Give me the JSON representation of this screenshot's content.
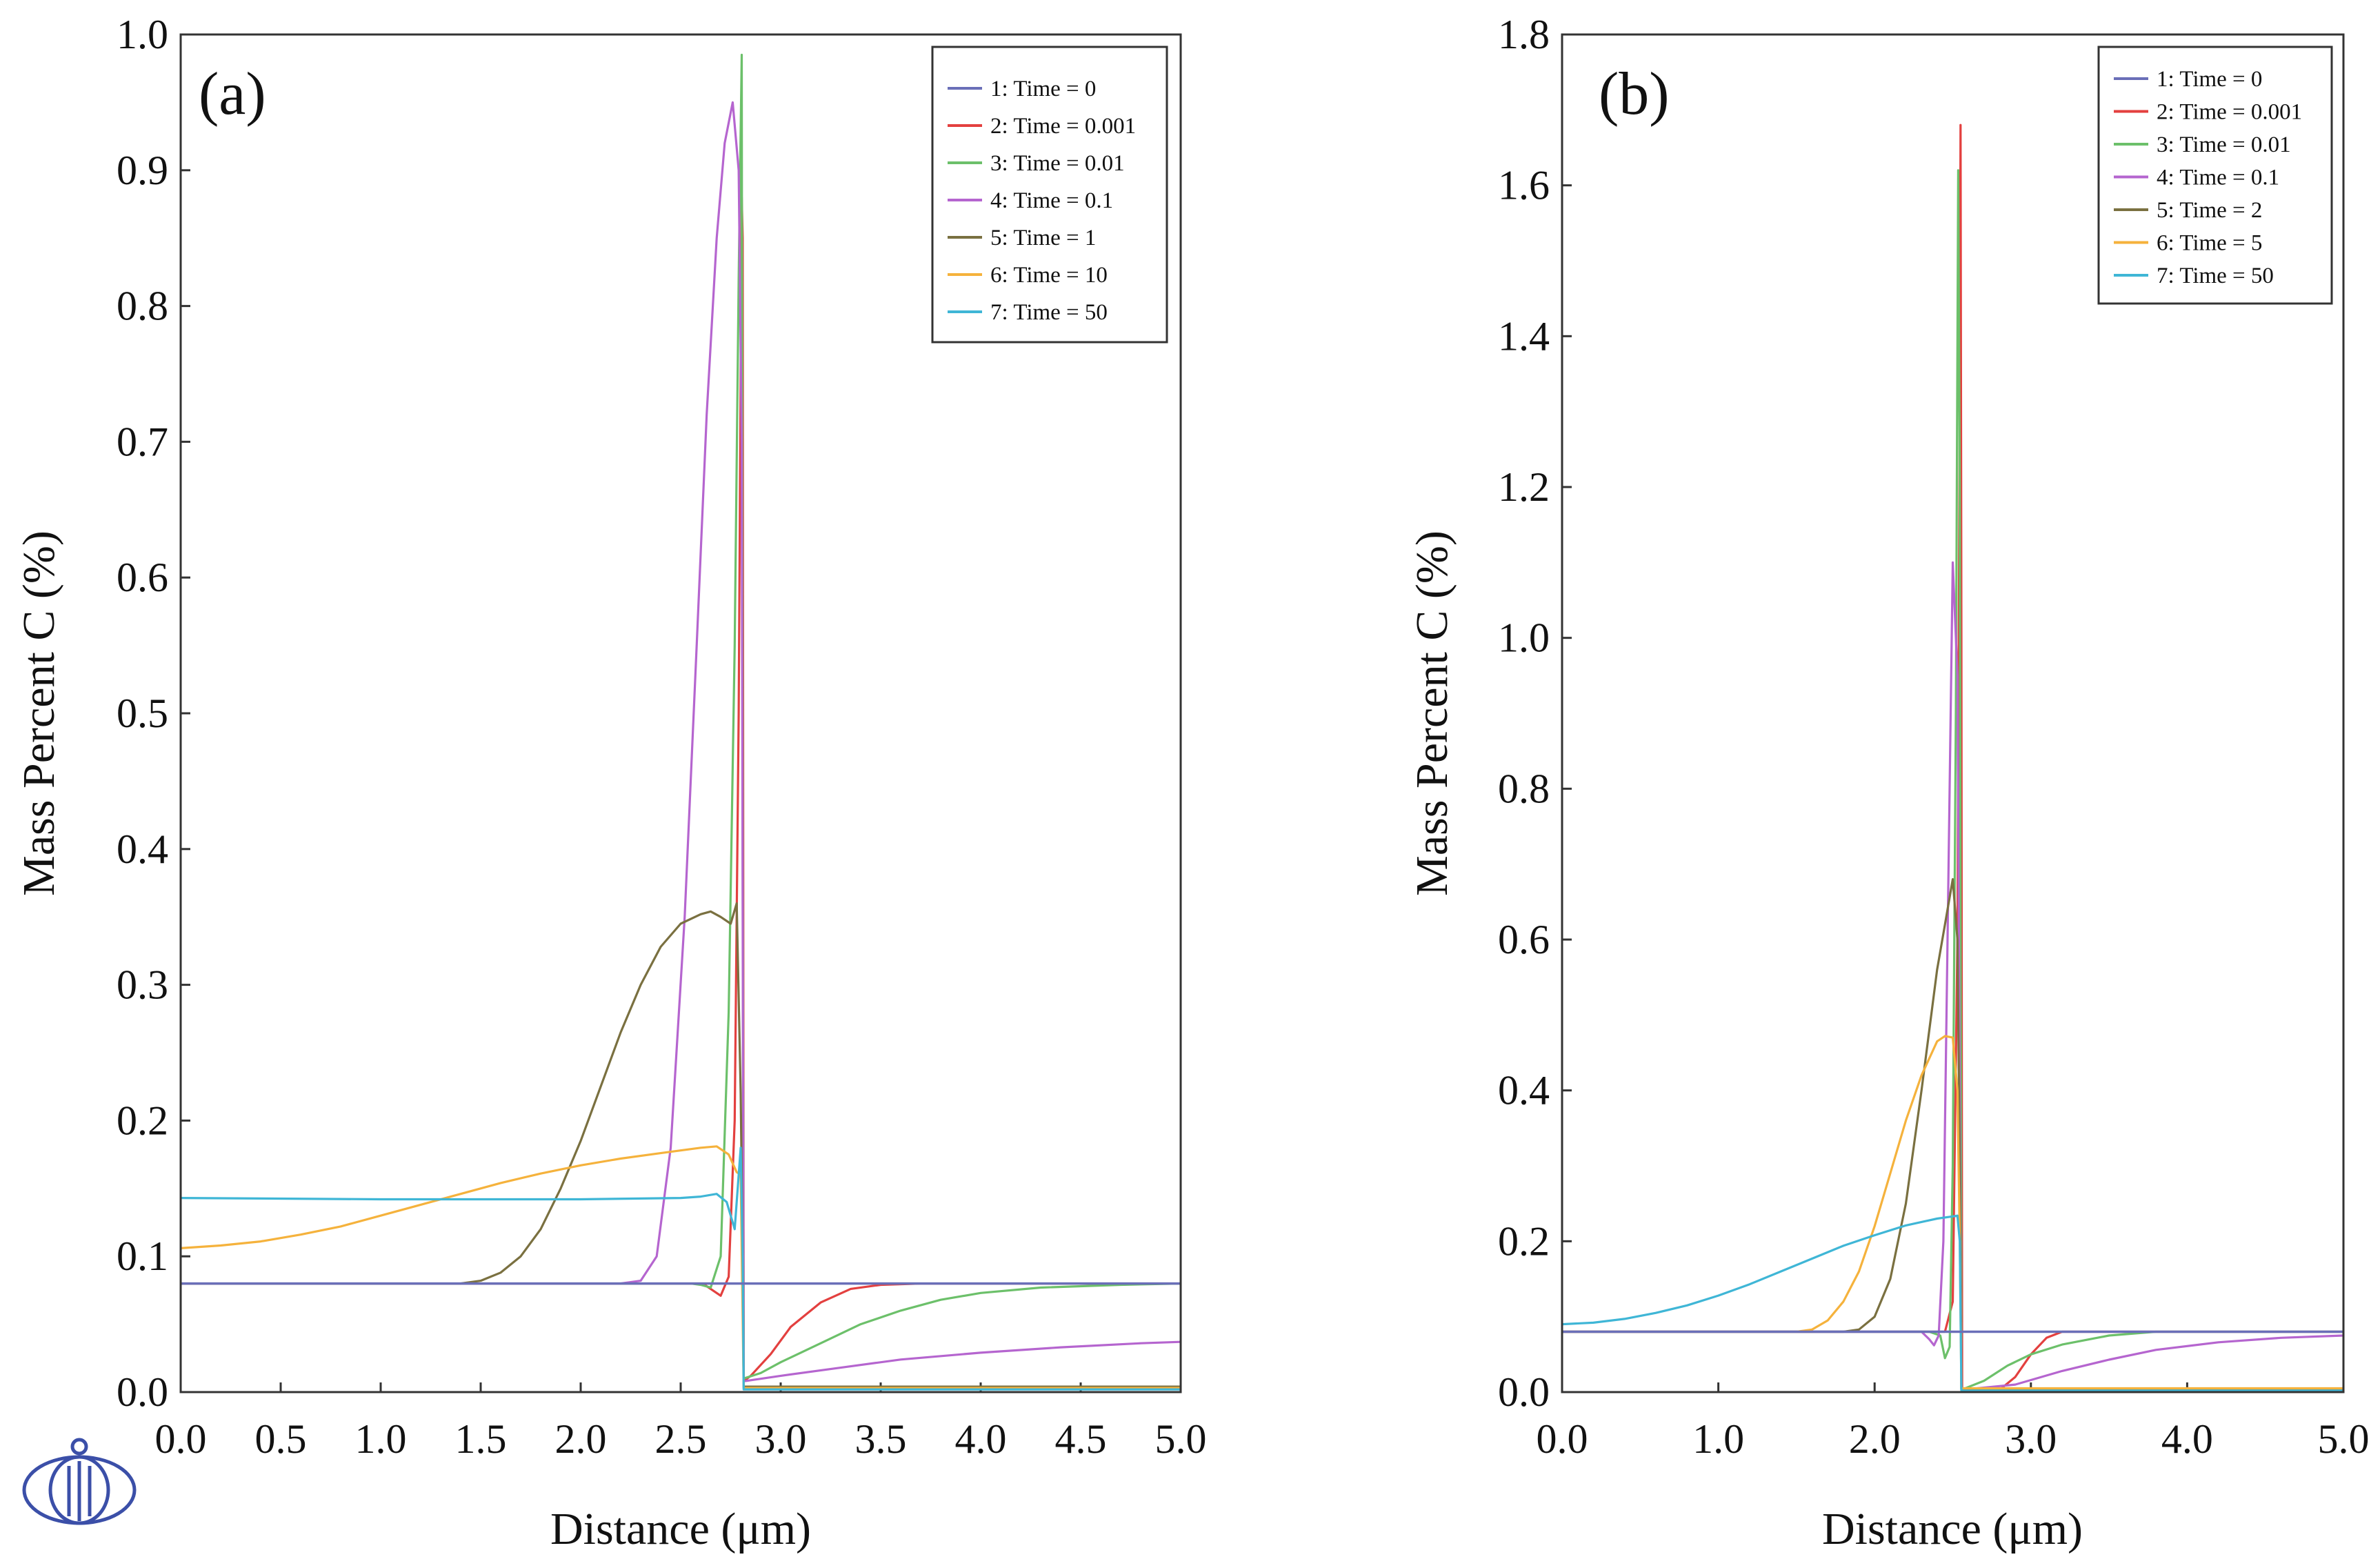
{
  "chart_data": [
    {
      "type": "line",
      "panel_label": "(a)",
      "xlabel": "Distance (μm)",
      "ylabel": "Mass Percent C (%)",
      "xlim": [
        0,
        5
      ],
      "ylim": [
        0,
        1
      ],
      "x_ticks": [
        "0.0",
        "0.5",
        "1.0",
        "1.5",
        "2.0",
        "2.5",
        "3.0",
        "3.5",
        "4.0",
        "4.5",
        "5.0"
      ],
      "y_ticks": [
        "0.0",
        "0.1",
        "0.2",
        "0.3",
        "0.4",
        "0.5",
        "0.6",
        "0.7",
        "0.8",
        "0.9",
        "1.0"
      ],
      "legend_position": "top-right",
      "series": [
        {
          "name": "1: Time = 0",
          "color": "#6a6fb8",
          "x": [
            0,
            2.8,
            2.8,
            5
          ],
          "y": [
            0.08,
            0.08,
            0.08,
            0.08
          ]
        },
        {
          "name": "2: Time = 0.001",
          "color": "#e3403f",
          "x": [
            0,
            2.6,
            2.62,
            2.66,
            2.7,
            2.74,
            2.77,
            2.79,
            2.805,
            2.81,
            2.815,
            2.85,
            2.95,
            3.05,
            3.2,
            3.35,
            3.5,
            3.7,
            5.0
          ],
          "y": [
            0.08,
            0.08,
            0.079,
            0.075,
            0.071,
            0.085,
            0.2,
            0.5,
            0.88,
            0.85,
            0.008,
            0.012,
            0.028,
            0.048,
            0.066,
            0.076,
            0.079,
            0.08,
            0.08
          ]
        },
        {
          "name": "3: Time = 0.01",
          "color": "#6cc06a",
          "x": [
            0,
            2.55,
            2.6,
            2.65,
            2.7,
            2.74,
            2.77,
            2.79,
            2.805,
            2.81,
            2.815,
            2.9,
            3.0,
            3.2,
            3.4,
            3.6,
            3.8,
            4.0,
            4.3,
            4.7,
            5.0
          ],
          "y": [
            0.08,
            0.08,
            0.079,
            0.077,
            0.1,
            0.28,
            0.55,
            0.82,
            0.985,
            0.4,
            0.01,
            0.014,
            0.022,
            0.036,
            0.05,
            0.06,
            0.068,
            0.073,
            0.077,
            0.079,
            0.08
          ]
        },
        {
          "name": "4: Time = 0.1",
          "color": "#b565cf",
          "x": [
            0,
            2.2,
            2.3,
            2.38,
            2.45,
            2.52,
            2.58,
            2.63,
            2.68,
            2.72,
            2.76,
            2.79,
            2.805,
            2.815,
            3.0,
            3.3,
            3.6,
            4.0,
            4.4,
            4.8,
            5.0
          ],
          "y": [
            0.08,
            0.08,
            0.082,
            0.1,
            0.18,
            0.35,
            0.55,
            0.72,
            0.85,
            0.92,
            0.95,
            0.9,
            0.7,
            0.008,
            0.012,
            0.018,
            0.024,
            0.029,
            0.033,
            0.036,
            0.037
          ]
        },
        {
          "name": "5: Time = 1",
          "color": "#7a7040",
          "x": [
            0,
            1.4,
            1.5,
            1.6,
            1.7,
            1.8,
            1.9,
            2.0,
            2.1,
            2.2,
            2.3,
            2.4,
            2.5,
            2.6,
            2.65,
            2.7,
            2.75,
            2.78,
            2.8,
            2.81,
            2.815,
            3.5,
            5.0
          ],
          "y": [
            0.08,
            0.08,
            0.082,
            0.088,
            0.1,
            0.12,
            0.15,
            0.185,
            0.225,
            0.265,
            0.3,
            0.328,
            0.345,
            0.352,
            0.354,
            0.35,
            0.345,
            0.36,
            0.22,
            0.1,
            0.004,
            0.004,
            0.004
          ]
        },
        {
          "name": "6: Time = 10",
          "color": "#f5b23c",
          "x": [
            0,
            0.2,
            0.4,
            0.6,
            0.8,
            1.0,
            1.2,
            1.4,
            1.6,
            1.8,
            2.0,
            2.2,
            2.4,
            2.6,
            2.68,
            2.74,
            2.78,
            2.8,
            2.815,
            3.5,
            5.0
          ],
          "y": [
            0.106,
            0.108,
            0.111,
            0.116,
            0.122,
            0.13,
            0.138,
            0.146,
            0.154,
            0.161,
            0.167,
            0.172,
            0.176,
            0.18,
            0.181,
            0.175,
            0.162,
            0.16,
            0.003,
            0.003,
            0.003
          ]
        },
        {
          "name": "7: Time = 50",
          "color": "#3fb6d6",
          "x": [
            0,
            1.0,
            2.0,
            2.5,
            2.6,
            2.68,
            2.73,
            2.77,
            2.79,
            2.8,
            2.81,
            2.815,
            5.0
          ],
          "y": [
            0.143,
            0.142,
            0.142,
            0.143,
            0.144,
            0.146,
            0.14,
            0.12,
            0.16,
            0.18,
            0.1,
            0.002,
            0.002
          ]
        }
      ]
    },
    {
      "type": "line",
      "panel_label": "(b)",
      "xlabel": "Distance (μm)",
      "ylabel": "Mass Percent C (%)",
      "xlim": [
        0,
        5
      ],
      "ylim": [
        0,
        1.8
      ],
      "x_ticks": [
        "0.0",
        "1.0",
        "2.0",
        "3.0",
        "4.0",
        "5.0"
      ],
      "y_ticks": [
        "0.0",
        "0.2",
        "0.4",
        "0.6",
        "0.8",
        "1.0",
        "1.2",
        "1.4",
        "1.6",
        "1.8"
      ],
      "legend_position": "top-right",
      "series": [
        {
          "name": "1: Time = 0",
          "color": "#6a6fb8",
          "x": [
            0,
            2.55,
            2.55,
            5
          ],
          "y": [
            0.08,
            0.08,
            0.08,
            0.08
          ]
        },
        {
          "name": "2: Time = 0.001",
          "color": "#e3403f",
          "x": [
            0,
            2.45,
            2.5,
            2.53,
            2.545,
            2.55,
            2.555,
            2.56,
            2.8,
            2.9,
            3.0,
            3.1,
            3.2,
            5.0
          ],
          "y": [
            0.08,
            0.08,
            0.12,
            0.6,
            1.3,
            1.68,
            1.0,
            0.003,
            0.003,
            0.02,
            0.05,
            0.072,
            0.08,
            0.08
          ]
        },
        {
          "name": "3: Time = 0.01",
          "color": "#6cc06a",
          "x": [
            0,
            2.35,
            2.42,
            2.45,
            2.48,
            2.5,
            2.52,
            2.535,
            2.545,
            2.555,
            2.7,
            2.85,
            3.0,
            3.2,
            3.5,
            3.8,
            5.0
          ],
          "y": [
            0.08,
            0.08,
            0.075,
            0.045,
            0.06,
            0.3,
            0.9,
            1.62,
            1.2,
            0.003,
            0.015,
            0.035,
            0.05,
            0.063,
            0.075,
            0.08,
            0.08
          ]
        },
        {
          "name": "4: Time = 0.1",
          "color": "#b565cf",
          "x": [
            0,
            2.3,
            2.35,
            2.38,
            2.41,
            2.44,
            2.47,
            2.5,
            2.53,
            2.555,
            2.9,
            3.2,
            3.5,
            3.8,
            4.2,
            4.6,
            5.0
          ],
          "y": [
            0.08,
            0.08,
            0.07,
            0.062,
            0.075,
            0.2,
            0.65,
            1.1,
            0.95,
            0.003,
            0.01,
            0.028,
            0.043,
            0.056,
            0.066,
            0.072,
            0.075
          ]
        },
        {
          "name": "5: Time = 2",
          "color": "#7a7040",
          "x": [
            0,
            1.8,
            1.9,
            2.0,
            2.1,
            2.2,
            2.3,
            2.4,
            2.45,
            2.5,
            2.53,
            2.545,
            2.555,
            3.5,
            5.0
          ],
          "y": [
            0.08,
            0.08,
            0.083,
            0.1,
            0.15,
            0.25,
            0.4,
            0.56,
            0.62,
            0.68,
            0.6,
            0.3,
            0.004,
            0.004,
            0.004
          ]
        },
        {
          "name": "6: Time = 5",
          "color": "#f5b23c",
          "x": [
            0,
            1.5,
            1.6,
            1.7,
            1.8,
            1.9,
            2.0,
            2.1,
            2.2,
            2.3,
            2.4,
            2.45,
            2.5,
            2.53,
            2.545,
            2.555,
            3.5,
            5.0
          ],
          "y": [
            0.08,
            0.08,
            0.083,
            0.095,
            0.12,
            0.16,
            0.22,
            0.29,
            0.36,
            0.42,
            0.465,
            0.472,
            0.47,
            0.4,
            0.2,
            0.005,
            0.005,
            0.005
          ]
        },
        {
          "name": "7: Time = 50",
          "color": "#3fb6d6",
          "x": [
            0,
            0.2,
            0.4,
            0.6,
            0.8,
            1.0,
            1.2,
            1.4,
            1.6,
            1.8,
            2.0,
            2.2,
            2.4,
            2.5,
            2.53,
            2.545,
            2.555,
            5.0
          ],
          "y": [
            0.09,
            0.092,
            0.097,
            0.105,
            0.115,
            0.128,
            0.143,
            0.16,
            0.177,
            0.194,
            0.208,
            0.221,
            0.23,
            0.233,
            0.234,
            0.2,
            0.002,
            0.002
          ]
        }
      ]
    }
  ]
}
